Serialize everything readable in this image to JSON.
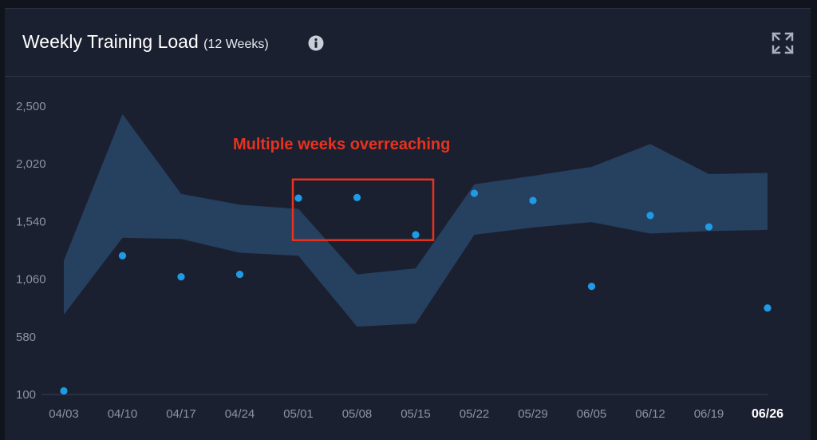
{
  "header": {
    "title": "Weekly Training Load",
    "subtitle": "(12 Weeks)",
    "info_icon": "info-circle-icon",
    "expand_icon": "expand-arrows-icon"
  },
  "colors": {
    "background": "#1b2030",
    "band": "#26405f",
    "points": "#1e9be6",
    "annotation": "#e8321e",
    "grid_text": "#8c93a3"
  },
  "chart_data": {
    "type": "scatter",
    "x": [
      "04/03",
      "04/10",
      "04/17",
      "04/24",
      "05/01",
      "05/08",
      "05/15",
      "05/22",
      "05/29",
      "06/05",
      "06/12",
      "06/19",
      "06/26"
    ],
    "highlighted_tick": "06/26",
    "yticks": [
      "2,500",
      "2,020",
      "1,540",
      "1,060",
      "580",
      "100"
    ],
    "ylim": [
      100,
      2500
    ],
    "series": [
      {
        "values": [
          130,
          1255,
          1080,
          1100,
          1735,
          1740,
          1430,
          1775,
          1715,
          1000,
          1590,
          1495,
          820
        ]
      }
    ],
    "band": {
      "upper": [
        1215,
        2435,
        1770,
        1680,
        1645,
        1100,
        1150,
        1850,
        1920,
        1995,
        2185,
        1935,
        1945
      ],
      "lower": [
        765,
        1405,
        1395,
        1280,
        1255,
        665,
        690,
        1430,
        1490,
        1535,
        1440,
        1460,
        1470
      ]
    },
    "annotations": [
      {
        "text": "Multiple weeks overreaching",
        "from": "05/01",
        "to": "05/15",
        "y_top": 1890,
        "y_bottom": 1385
      }
    ]
  }
}
